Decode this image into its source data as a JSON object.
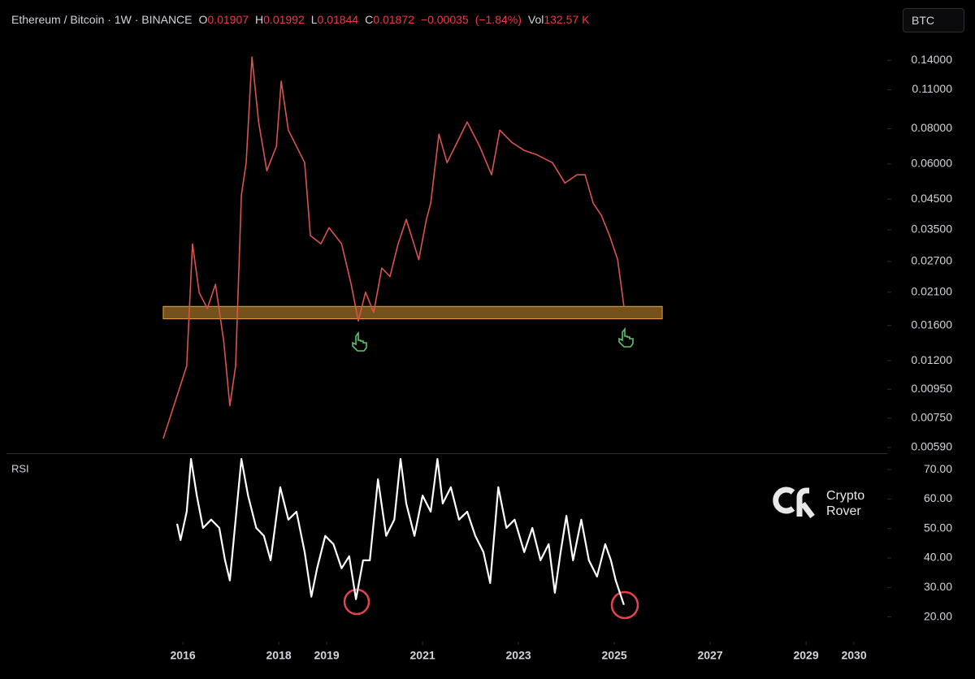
{
  "chart_data": [
    {
      "type": "line",
      "title": "Ethereum / Bitcoin · 1W · BINANCE",
      "ohlc": [
        {
          "key": "O",
          "value": 0.01907
        },
        {
          "key": "H",
          "value": 0.01992
        },
        {
          "key": "L",
          "value": 0.01844
        },
        {
          "key": "C",
          "value": 0.01872
        }
      ],
      "change": {
        "value": -0.00035,
        "label": "−0.00035"
      },
      "change_pct": {
        "value": -1.84,
        "label": "(−1.84%)"
      },
      "volume": {
        "key": "Vol",
        "value": 132570,
        "label": "132.57 K"
      },
      "log_scale": true,
      "xlim": [
        2012.32,
        2030.66
      ],
      "ylim": [
        0.00563,
        0.17
      ],
      "yticks": [
        {
          "value": 0.14,
          "label": "0.14000"
        },
        {
          "value": 0.11,
          "label": "0.11000"
        },
        {
          "value": 0.08,
          "label": "0.08000"
        },
        {
          "value": 0.06,
          "label": "0.06000"
        },
        {
          "value": 0.045,
          "label": "0.04500"
        },
        {
          "value": 0.035,
          "label": "0.03500"
        },
        {
          "value": 0.027,
          "label": "0.02700"
        },
        {
          "value": 0.021,
          "label": "0.02100"
        },
        {
          "value": 0.016,
          "label": "0.01600"
        },
        {
          "value": 0.012,
          "label": "0.01200"
        },
        {
          "value": 0.0095,
          "label": "0.00950"
        },
        {
          "value": 0.0075,
          "label": "0.00750"
        },
        {
          "value": 0.0059,
          "label": "0.00590"
        }
      ],
      "x": [
        2015.59,
        2016.08,
        2016.2,
        2016.34,
        2016.51,
        2016.68,
        2016.85,
        2016.98,
        2017.1,
        2017.22,
        2017.32,
        2017.44,
        2017.58,
        2017.75,
        2017.95,
        2018.05,
        2018.2,
        2018.37,
        2018.54,
        2018.66,
        2018.88,
        2019.05,
        2019.31,
        2019.51,
        2019.66,
        2019.81,
        2019.98,
        2020.15,
        2020.32,
        2020.49,
        2020.66,
        2020.92,
        2021.08,
        2021.17,
        2021.34,
        2021.51,
        2021.68,
        2021.93,
        2022.19,
        2022.44,
        2022.61,
        2022.86,
        2023.12,
        2023.37,
        2023.71,
        2023.97,
        2024.22,
        2024.39,
        2024.56,
        2024.73,
        2024.9,
        2025.07,
        2025.2
      ],
      "values": [
        0.00634,
        0.0115,
        0.0312,
        0.0209,
        0.0184,
        0.0224,
        0.0141,
        0.0083,
        0.0115,
        0.0465,
        0.0606,
        0.1438,
        0.0845,
        0.0567,
        0.0693,
        0.118,
        0.0791,
        0.0693,
        0.0606,
        0.0334,
        0.0312,
        0.0356,
        0.0312,
        0.0224,
        0.0166,
        0.021,
        0.0178,
        0.0256,
        0.0239,
        0.0312,
        0.0381,
        0.0274,
        0.0381,
        0.0435,
        0.0765,
        0.0606,
        0.0693,
        0.0845,
        0.0693,
        0.0549,
        0.0791,
        0.0716,
        0.067,
        0.0648,
        0.0606,
        0.0513,
        0.0549,
        0.0549,
        0.0435,
        0.0394,
        0.0334,
        0.0274,
        0.0187
      ],
      "color": "#d9534f",
      "zone": {
        "x": [
          2015.59,
          2026.0
        ],
        "y": [
          0.0169,
          0.0187
        ],
        "color": "#e8a33a"
      }
    },
    {
      "type": "line",
      "title": "RSI",
      "xlim": [
        2012.32,
        2030.66
      ],
      "ylim": [
        13,
        75
      ],
      "yticks": [
        {
          "value": 70,
          "label": "70.00"
        },
        {
          "value": 60,
          "label": "60.00"
        },
        {
          "value": 50,
          "label": "50.00"
        },
        {
          "value": 40,
          "label": "40.00"
        },
        {
          "value": 30,
          "label": "30.00"
        },
        {
          "value": 20,
          "label": "20.00"
        }
      ],
      "xticks": [
        2016,
        2018,
        2019,
        2021,
        2023,
        2025,
        2027,
        2029,
        2030
      ],
      "x": [
        2015.88,
        2015.95,
        2016.08,
        2016.17,
        2016.29,
        2016.42,
        2016.59,
        2016.76,
        2016.88,
        2016.98,
        2017.1,
        2017.22,
        2017.36,
        2017.53,
        2017.69,
        2017.83,
        2018.03,
        2018.2,
        2018.37,
        2018.54,
        2018.68,
        2018.8,
        2018.97,
        2019.14,
        2019.31,
        2019.47,
        2019.61,
        2019.76,
        2019.9,
        2020.07,
        2020.24,
        2020.41,
        2020.54,
        2020.66,
        2020.83,
        2021,
        2021.17,
        2021.31,
        2021.42,
        2021.59,
        2021.76,
        2021.93,
        2022.1,
        2022.27,
        2022.41,
        2022.58,
        2022.75,
        2022.92,
        2023.12,
        2023.29,
        2023.46,
        2023.63,
        2023.76,
        2023.88,
        2024,
        2024.14,
        2024.31,
        2024.47,
        2024.64,
        2024.81,
        2024.93,
        2025.03,
        2025.2
      ],
      "values": [
        51.6,
        46.1,
        55.7,
        73.6,
        61.2,
        50.2,
        53,
        50.2,
        39.2,
        32.4,
        53,
        73.6,
        61.2,
        50.2,
        47.5,
        39.2,
        64,
        53,
        55.7,
        42,
        26.9,
        36.5,
        47.5,
        44.7,
        36.5,
        40.6,
        26,
        39.2,
        39.2,
        66.7,
        47.5,
        53,
        73.6,
        58.5,
        47.5,
        61.2,
        55.7,
        73.6,
        58.5,
        64,
        53,
        55.7,
        47.5,
        42,
        31.5,
        64,
        50.2,
        53,
        42,
        50.2,
        39.2,
        44.7,
        28.2,
        42,
        54.3,
        39.2,
        53,
        39.2,
        33.7,
        44.7,
        39.2,
        32.4,
        24.1
      ],
      "color": "#ffffff"
    }
  ],
  "toolbar": {
    "currency": "BTC"
  },
  "brand": {
    "line1": "Crypto",
    "line2": "Rover"
  }
}
